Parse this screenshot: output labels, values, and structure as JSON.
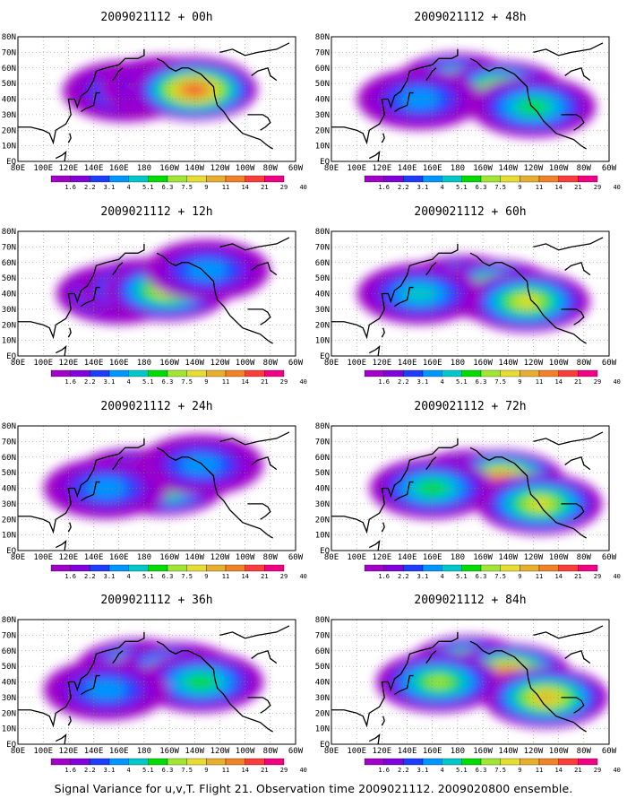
{
  "chart_data": [
    {
      "type": "heatmap",
      "title": "2009021112 + 00h",
      "lead_hours": 0,
      "blobs": [
        {
          "lon": 165,
          "lat": 45,
          "level": 3
        },
        {
          "lon": 195,
          "lat": 48,
          "level": 3
        },
        {
          "lon": 218,
          "lat": 48,
          "level": 4
        },
        {
          "lon": 220,
          "lat": 46,
          "level": 10
        }
      ]
    },
    {
      "type": "heatmap",
      "title": "2009021112 + 12h",
      "lead_hours": 12,
      "blobs": [
        {
          "lon": 160,
          "lat": 40,
          "level": 5
        },
        {
          "lon": 178,
          "lat": 43,
          "level": 6
        },
        {
          "lon": 198,
          "lat": 42,
          "level": 7
        },
        {
          "lon": 230,
          "lat": 55,
          "level": 3
        }
      ]
    },
    {
      "type": "heatmap",
      "title": "2009021112 + 24h",
      "lead_hours": 24,
      "blobs": [
        {
          "lon": 172,
          "lat": 46,
          "level": 7
        },
        {
          "lon": 195,
          "lat": 42,
          "level": 7
        },
        {
          "lon": 225,
          "lat": 55,
          "level": 3
        },
        {
          "lon": 150,
          "lat": 40,
          "level": 3
        }
      ]
    },
    {
      "type": "heatmap",
      "title": "2009021112 + 36h",
      "lead_hours": 36,
      "blobs": [
        {
          "lon": 175,
          "lat": 48,
          "level": 7
        },
        {
          "lon": 205,
          "lat": 46,
          "level": 7
        },
        {
          "lon": 225,
          "lat": 40,
          "level": 5
        },
        {
          "lon": 150,
          "lat": 35,
          "level": 3
        }
      ]
    },
    {
      "type": "heatmap",
      "title": "2009021112 + 48h",
      "lead_hours": 48,
      "blobs": [
        {
          "lon": 180,
          "lat": 50,
          "level": 7
        },
        {
          "lon": 215,
          "lat": 45,
          "level": 8
        },
        {
          "lon": 240,
          "lat": 35,
          "level": 5
        },
        {
          "lon": 150,
          "lat": 40,
          "level": 3
        }
      ]
    },
    {
      "type": "heatmap",
      "title": "2009021112 + 60h",
      "lead_hours": 60,
      "blobs": [
        {
          "lon": 185,
          "lat": 45,
          "level": 8
        },
        {
          "lon": 210,
          "lat": 42,
          "level": 9
        },
        {
          "lon": 235,
          "lat": 35,
          "level": 7
        },
        {
          "lon": 150,
          "lat": 40,
          "level": 4
        }
      ]
    },
    {
      "type": "heatmap",
      "title": "2009021112 + 72h",
      "lead_hours": 72,
      "blobs": [
        {
          "lon": 190,
          "lat": 45,
          "level": 8
        },
        {
          "lon": 215,
          "lat": 45,
          "level": 10
        },
        {
          "lon": 245,
          "lat": 30,
          "level": 7
        },
        {
          "lon": 160,
          "lat": 40,
          "level": 5
        }
      ]
    },
    {
      "type": "heatmap",
      "title": "2009021112 + 84h",
      "lead_hours": 84,
      "blobs": [
        {
          "lon": 190,
          "lat": 50,
          "level": 9
        },
        {
          "lon": 220,
          "lat": 45,
          "level": 10
        },
        {
          "lon": 250,
          "lat": 30,
          "level": 8
        },
        {
          "lon": 165,
          "lat": 40,
          "level": 6
        }
      ]
    }
  ],
  "map": {
    "lon_range": [
      80,
      300
    ],
    "lat_range": [
      0,
      80
    ],
    "x_ticks": [
      "80E",
      "100E",
      "120E",
      "140E",
      "160E",
      "180",
      "160W",
      "140W",
      "120W",
      "100W",
      "80W",
      "60W"
    ],
    "y_ticks": [
      "EQ",
      "10N",
      "20N",
      "30N",
      "40N",
      "50N",
      "60N",
      "70N",
      "80N"
    ],
    "grid": "dotted"
  },
  "colorbar": {
    "labels": [
      "1.6",
      "2.2",
      "3.1",
      "4",
      "5.1",
      "6.3",
      "7.5",
      "9",
      "11",
      "14",
      "21",
      "29",
      "40"
    ],
    "colors": [
      "#a000c8",
      "#8200dc",
      "#1e3cff",
      "#0096ff",
      "#00c8c8",
      "#00dc00",
      "#a0e632",
      "#e6dc32",
      "#e6af2d",
      "#f08228",
      "#fa3c3c",
      "#f00082"
    ]
  },
  "caption": "Signal Variance for u,v,T. Flight 21. Observation time 2009021112. 2009020800 ensemble."
}
